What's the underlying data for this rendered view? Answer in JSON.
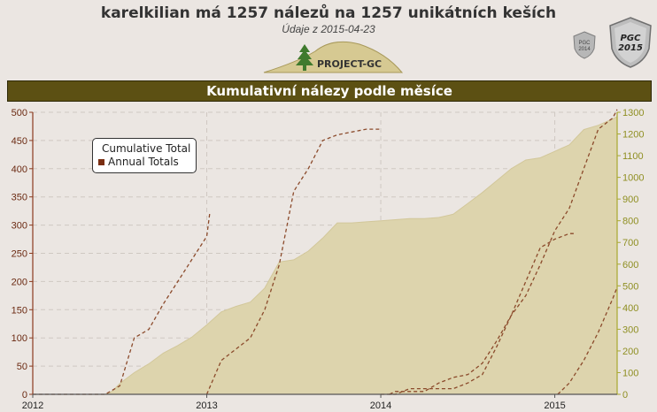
{
  "header": {
    "title": "karelkilian má 1257 nálezů na 1257 unikátních keších",
    "subtitle": "Údaje z 2015-04-23",
    "logo_text": "PROJECT-GC",
    "badges": [
      {
        "line1": "PGC",
        "line2": "2014"
      },
      {
        "line1": "PGC",
        "line2": "2015"
      }
    ]
  },
  "colors": {
    "band": "#5c5013",
    "area_fill": "#ddd4ad",
    "annual_line": "#8b4a2b",
    "left_axis": "#8b3a1f",
    "right_axis": "#a8a830"
  },
  "chart_data": {
    "type": "area",
    "title": "Kumulativní nálezy podle měsíce",
    "x_ticks": [
      "2012",
      "2013",
      "2014",
      "2015"
    ],
    "x_range": [
      0,
      40.3
    ],
    "y_left": {
      "range": [
        0,
        500
      ],
      "ticks": [
        "0",
        "50",
        "100",
        "150",
        "200",
        "250",
        "300",
        "350",
        "400",
        "450",
        "500"
      ]
    },
    "y_right": {
      "range": [
        0,
        1300
      ],
      "ticks": [
        "0",
        "100",
        "200",
        "300",
        "400",
        "500",
        "600",
        "700",
        "800",
        "900",
        "1000",
        "1100",
        "1200",
        "1300"
      ]
    },
    "grid": true,
    "legend": {
      "position": "top-left",
      "entries": [
        "Cumulative Total",
        "Annual Totals"
      ]
    },
    "series": [
      {
        "name": "Cumulative Total",
        "axis": "right",
        "x": [
          0,
          5.0,
          5.5,
          6,
          7,
          8,
          9,
          10,
          11,
          12,
          13,
          14,
          15,
          16,
          17,
          18,
          19,
          20,
          21,
          22,
          23,
          24,
          25,
          26,
          27,
          28,
          29,
          30,
          31,
          32,
          33,
          34,
          35,
          36,
          37,
          38,
          39,
          40,
          40.3
        ],
        "values": [
          0,
          0,
          15,
          50,
          100,
          140,
          190,
          225,
          265,
          320,
          380,
          405,
          425,
          490,
          610,
          620,
          660,
          720,
          790,
          790,
          795,
          800,
          805,
          810,
          810,
          815,
          830,
          880,
          930,
          985,
          1040,
          1080,
          1090,
          1120,
          1150,
          1220,
          1240,
          1270,
          1280
        ]
      },
      {
        "name": "Annual Totals",
        "axis": "left",
        "segments": [
          {
            "x": [
              0,
              5.0,
              6,
              7,
              8,
              9,
              10,
              11,
              12,
              12.2
            ],
            "values": [
              0,
              0,
              15,
              100,
              115,
              160,
              200,
              240,
              280,
              320
            ]
          },
          {
            "x": [
              24,
              25,
              26,
              27,
              28,
              29,
              30,
              31,
              32,
              33,
              34,
              35,
              36,
              37,
              37.3
            ],
            "values": [
              0,
              0,
              10,
              10,
              10,
              10,
              20,
              35,
              85,
              140,
              200,
              260,
              275,
              285,
              285
            ]
          },
          {
            "x": [
              36.2,
              37,
              38,
              39,
              40,
              40.3
            ],
            "values": [
              0,
              20,
              60,
              110,
              170,
              190
            ]
          },
          {
            "x": [
              24.6,
              25,
              26,
              27,
              28,
              29,
              30,
              31,
              32,
              33,
              34,
              35,
              36,
              37,
              38,
              39,
              40,
              40.3
            ],
            "values": [
              0,
              5,
              5,
              5,
              20,
              30,
              35,
              55,
              95,
              140,
              175,
              230,
              290,
              330,
              400,
              470,
              490,
              505
            ]
          },
          {
            "x": [
              12,
              13,
              14,
              15,
              16,
              17,
              18,
              19,
              20,
              21,
              22,
              23,
              24
            ],
            "values": [
              0,
              60,
              80,
              100,
              150,
              230,
              360,
              400,
              450,
              460,
              465,
              470,
              470
            ]
          }
        ]
      }
    ]
  }
}
